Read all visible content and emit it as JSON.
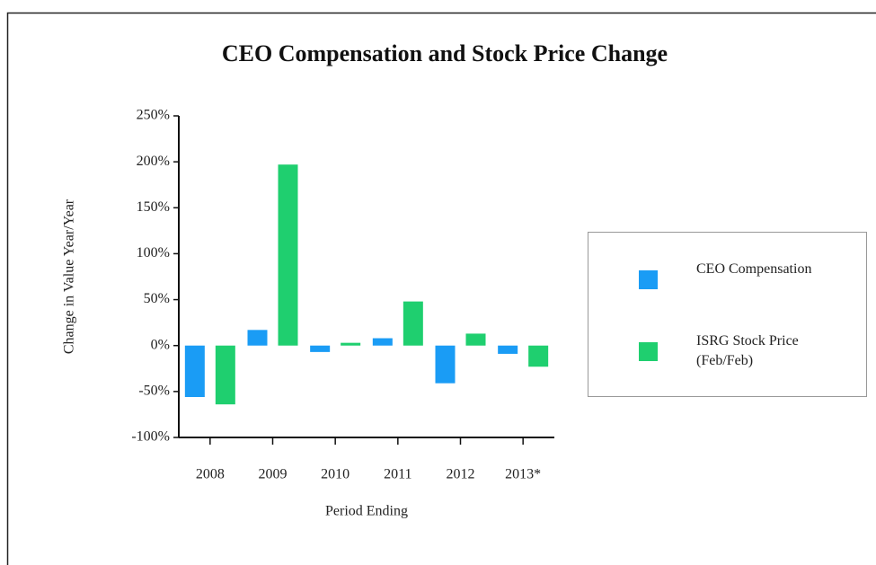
{
  "chart_data": {
    "type": "bar",
    "title": "CEO Compensation and Stock Price Change",
    "y_label": "Change in Value Year/Year",
    "x_label": "Period Ending",
    "categories": [
      "2008",
      "2009",
      "2010",
      "2011",
      "2012",
      "2013*"
    ],
    "series": [
      {
        "name": "CEO Compensation",
        "color": "#1a9cf5",
        "values": [
          -56,
          17,
          -7,
          8,
          -41,
          -9
        ]
      },
      {
        "name": "ISRG Stock Price (Feb/Feb)",
        "color": "#1fcf6f",
        "values": [
          -64,
          197,
          3,
          48,
          13,
          -23
        ]
      }
    ],
    "ylim": [
      -100,
      250
    ],
    "yticks": [
      {
        "value": -100,
        "label": "-100%"
      },
      {
        "value": -50,
        "label": "-50%"
      },
      {
        "value": 0,
        "label": "0%"
      },
      {
        "value": 50,
        "label": "50%"
      },
      {
        "value": 100,
        "label": "100%"
      },
      {
        "value": 150,
        "label": "150%"
      },
      {
        "value": 200,
        "label": "200%"
      },
      {
        "value": 250,
        "label": "250%"
      }
    ],
    "grid": false,
    "legend": "right"
  }
}
